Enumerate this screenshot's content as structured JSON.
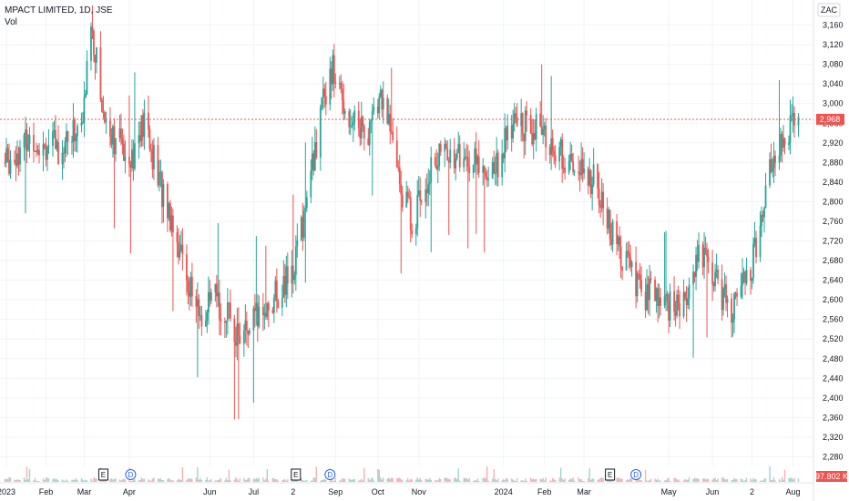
{
  "legend": {
    "title": "MPACT LIMITED, 1D, JSE",
    "volume_label": "Vol"
  },
  "currency": "ZAC",
  "price_label": "2,968",
  "volume_label_value": "97.802 K",
  "colors": {
    "up": "#26a69a",
    "down": "#ef5350",
    "price_line": "#ef5350",
    "grid": "#f0f3fa",
    "axis_text": "#131722"
  },
  "chart_data": {
    "type": "candlestick",
    "title": "MPACT LIMITED, 1D, JSE",
    "ylim": [
      2240,
      3200
    ],
    "y_ticks": [
      2280,
      2320,
      2360,
      2400,
      2440,
      2480,
      2520,
      2560,
      2600,
      2640,
      2680,
      2720,
      2760,
      2800,
      2840,
      2880,
      2920,
      2960,
      3000,
      3040,
      3080,
      3120,
      3160
    ],
    "y_tick_labels": [
      "2,280",
      "2,320",
      "2,360",
      "2,400",
      "2,440",
      "2,480",
      "2,520",
      "2,560",
      "2,600",
      "2,640",
      "2,680",
      "2,720",
      "2,760",
      "2,800",
      "2,840",
      "2,880",
      "2,920",
      "2,960",
      "3,000",
      "3,040",
      "3,080",
      "3,120",
      "3,160"
    ],
    "x_labels": [
      "2023",
      "Feb",
      "Mar",
      "Apr",
      "Jun",
      "Jul",
      "2",
      "Sep",
      "Oct",
      "Nov",
      "2024",
      "Feb",
      "Mar",
      "May",
      "Jun",
      "2",
      "Aug"
    ],
    "last_price": 2968,
    "events": [
      {
        "type": "E",
        "month": "Mar 2023"
      },
      {
        "type": "D",
        "month": "Apr 2023"
      },
      {
        "type": "E",
        "month": "Aug 2023"
      },
      {
        "type": "D",
        "month": "Sep 2023"
      },
      {
        "type": "E",
        "month": "Mar 2024"
      },
      {
        "type": "D",
        "month": "Apr 2024"
      }
    ],
    "price_path": [
      [
        "2023-01-02",
        2880
      ],
      [
        "2023-01-20",
        2930
      ],
      [
        "2023-02-10",
        2910
      ],
      [
        "2023-02-28",
        2960
      ],
      [
        "2023-03-06",
        3170
      ],
      [
        "2023-03-15",
        2980
      ],
      [
        "2023-03-25",
        2920
      ],
      [
        "2023-04-06",
        2900
      ],
      [
        "2023-04-14",
        2960
      ],
      [
        "2023-04-25",
        2840
      ],
      [
        "2023-05-05",
        2760
      ],
      [
        "2023-05-15",
        2650
      ],
      [
        "2023-05-25",
        2560
      ],
      [
        "2023-06-05",
        2600
      ],
      [
        "2023-06-15",
        2560
      ],
      [
        "2023-06-25",
        2520
      ],
      [
        "2023-07-05",
        2560
      ],
      [
        "2023-07-20",
        2610
      ],
      [
        "2023-07-31",
        2650
      ],
      [
        "2023-08-08",
        2760
      ],
      [
        "2023-08-18",
        2920
      ],
      [
        "2023-08-28",
        3080
      ],
      [
        "2023-09-10",
        2980
      ],
      [
        "2023-09-25",
        2940
      ],
      [
        "2023-10-05",
        3020
      ],
      [
        "2023-10-20",
        2820
      ],
      [
        "2023-10-28",
        2760
      ],
      [
        "2023-11-10",
        2880
      ],
      [
        "2023-11-25",
        2900
      ],
      [
        "2023-12-10",
        2880
      ],
      [
        "2023-12-25",
        2860
      ],
      [
        "2024-01-10",
        2960
      ],
      [
        "2024-01-25",
        2950
      ],
      [
        "2024-02-10",
        2900
      ],
      [
        "2024-02-25",
        2860
      ],
      [
        "2024-03-10",
        2840
      ],
      [
        "2024-03-20",
        2740
      ],
      [
        "2024-03-31",
        2680
      ],
      [
        "2024-04-10",
        2620
      ],
      [
        "2024-04-25",
        2600
      ],
      [
        "2024-05-10",
        2580
      ],
      [
        "2024-05-25",
        2700
      ],
      [
        "2024-06-05",
        2640
      ],
      [
        "2024-06-15",
        2580
      ],
      [
        "2024-06-25",
        2620
      ],
      [
        "2024-07-05",
        2700
      ],
      [
        "2024-07-15",
        2880
      ],
      [
        "2024-07-25",
        2940
      ],
      [
        "2024-08-05",
        2968
      ]
    ]
  }
}
